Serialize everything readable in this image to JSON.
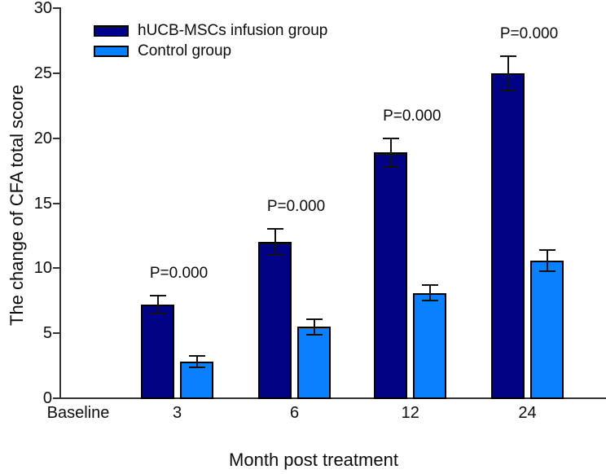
{
  "chart_data": {
    "type": "bar",
    "title": "",
    "xlabel": "Month post treatment",
    "ylabel": "The change of CFA total score",
    "categories": [
      "Baseline",
      "3",
      "6",
      "12",
      "24"
    ],
    "series": [
      {
        "name": "hUCB-MSCs infusion group",
        "color": "#020285",
        "values": [
          0,
          7.2,
          12,
          18.9,
          25
        ],
        "errors": [
          0,
          0.7,
          1.0,
          1.1,
          1.3
        ]
      },
      {
        "name": "Control group",
        "color": "#0b80ff",
        "values": [
          0,
          2.8,
          5.5,
          8.1,
          10.6
        ],
        "errors": [
          0,
          0.45,
          0.6,
          0.6,
          0.8
        ]
      }
    ],
    "annotations": [
      {
        "category": "3",
        "text": "P=0.000"
      },
      {
        "category": "6",
        "text": "P=0.000"
      },
      {
        "category": "12",
        "text": "P=0.000"
      },
      {
        "category": "24",
        "text": "P=0.000"
      }
    ],
    "ylim": [
      0,
      30
    ],
    "yticks": [
      0,
      5,
      10,
      15,
      20,
      25,
      30
    ],
    "grid": false,
    "legend_position": "upper-left-inside",
    "error_bars": "symmetric-caps",
    "colors": {
      "axis": "#333333",
      "text": "#0c0c0c",
      "bar_border": "#000000",
      "background": "#ffffff"
    }
  }
}
